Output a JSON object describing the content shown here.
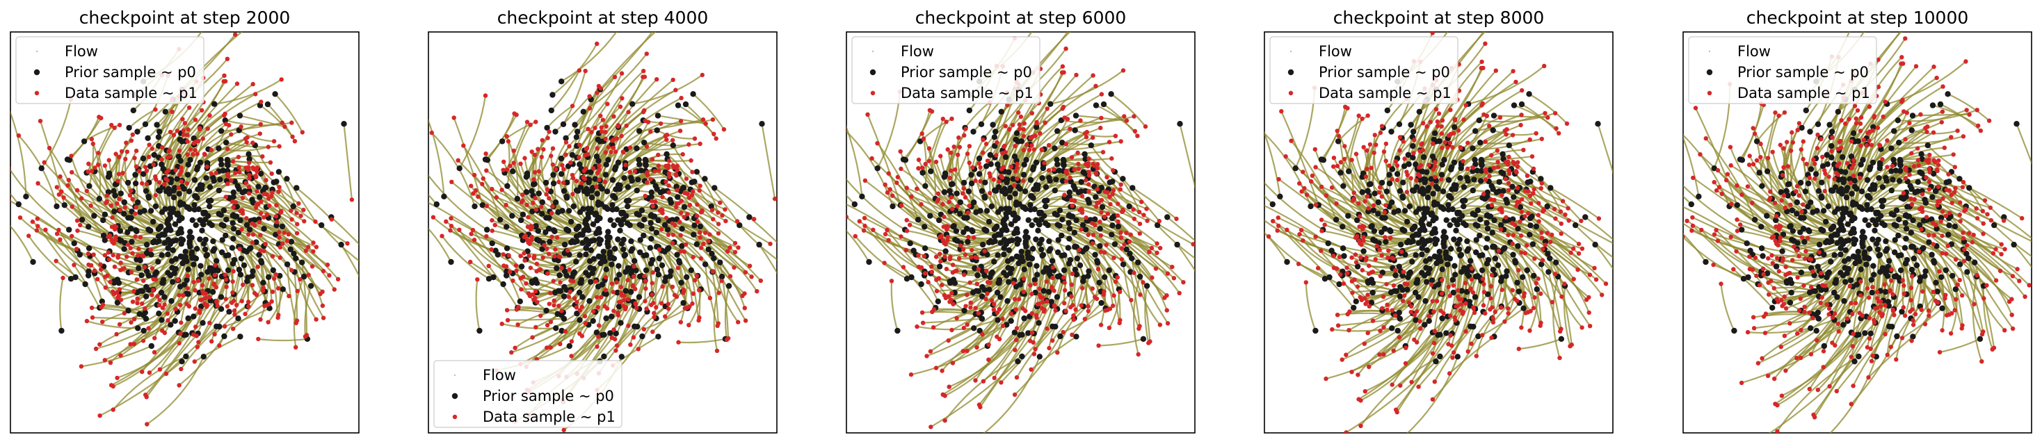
{
  "chart_data": [
    {
      "type": "scatter",
      "title": "checkpoint at step 2000",
      "legend_position": "upper-left",
      "legend": [
        "Flow",
        "Prior sample ~ p0",
        "Data sample ~ p1"
      ]
    },
    {
      "type": "scatter",
      "title": "checkpoint at step 4000",
      "legend_position": "lower-left",
      "legend": [
        "Flow",
        "Prior sample ~ p0",
        "Data sample ~ p1"
      ]
    },
    {
      "type": "scatter",
      "title": "checkpoint at step 6000",
      "legend_position": "upper-left",
      "legend": [
        "Flow",
        "Prior sample ~ p0",
        "Data sample ~ p1"
      ]
    },
    {
      "type": "scatter",
      "title": "checkpoint at step 8000",
      "legend_position": "upper-left",
      "legend": [
        "Flow",
        "Prior sample ~ p0",
        "Data sample ~ p1"
      ]
    },
    {
      "type": "scatter",
      "title": "checkpoint at step 10000",
      "legend_position": "upper-left",
      "legend": [
        "Flow",
        "Prior sample ~ p0",
        "Data sample ~ p1"
      ]
    }
  ],
  "colors": {
    "flow": "#8f8a2e",
    "prior": "#1a1a1a",
    "data": "#d62728"
  },
  "axes": {
    "ticks": "none",
    "grid": false
  }
}
